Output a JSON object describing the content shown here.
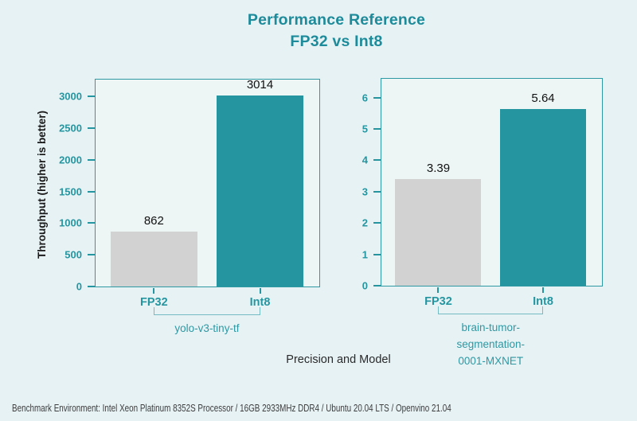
{
  "title": {
    "line1": "Performance Reference",
    "line2": "FP32 vs Int8"
  },
  "y_axis_label": "Throughput (higher is better)",
  "x_axis_label": "Precision and Model",
  "footer": "Benchmark Environment: Intel Xeon Platinum 8352S Processor / 16GB 2933MHz DDR4 / Ubuntu 20.04 LTS / Openvino 21.04",
  "colors": {
    "teal_accent": "#2596a0",
    "gray_bar": "#d2d2d2",
    "teal_bar": "#2596a0",
    "background": "#e7f2f5",
    "plot_background": "#edf5f5",
    "plot_border": "#2e99a3",
    "bracket": "#74bbc3",
    "title_text": "#1d8b99",
    "value_text": "#121212",
    "footer_text": "#3e3e3e"
  },
  "chart_data": [
    {
      "type": "bar",
      "group_label": "yolo-v3-tiny-tf",
      "categories": [
        "FP32",
        "Int8"
      ],
      "values": [
        862,
        3014
      ],
      "value_labels": [
        "862",
        "3014"
      ],
      "bar_colors": [
        "#d2d2d2",
        "#2596a0"
      ],
      "yticks": [
        0,
        500,
        1000,
        1500,
        2000,
        2500,
        3000
      ],
      "ylim": [
        0,
        3265
      ],
      "grid": false,
      "legend": null
    },
    {
      "type": "bar",
      "group_label": "brain-tumor-\nsegmentation-\n0001-MXNET",
      "categories": [
        "FP32",
        "Int8"
      ],
      "values": [
        3.39,
        5.64
      ],
      "value_labels": [
        "3.39",
        "5.64"
      ],
      "bar_colors": [
        "#d2d2d2",
        "#2596a0"
      ],
      "yticks": [
        0,
        1,
        2,
        3,
        4,
        5,
        6
      ],
      "ylim": [
        0,
        6.6
      ],
      "grid": false,
      "legend": null
    }
  ]
}
